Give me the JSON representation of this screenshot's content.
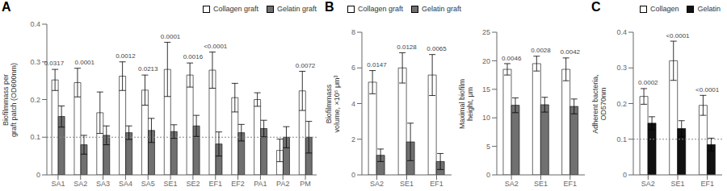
{
  "chart_data": [
    {
      "type": "bar",
      "title": "A",
      "categories": [
        "SA1",
        "SA2",
        "SA3",
        "SA4",
        "SA5",
        "SE1",
        "SE2",
        "EF1",
        "EF2",
        "PA1",
        "PA2",
        "PM"
      ],
      "series": [
        {
          "name": "Collagen graft",
          "color": "#ffffff",
          "values": [
            0.252,
            0.245,
            0.165,
            0.262,
            0.225,
            0.28,
            0.265,
            0.278,
            0.205,
            0.2,
            0.065,
            0.223
          ],
          "errors": [
            0.028,
            0.038,
            0.055,
            0.038,
            0.04,
            0.072,
            0.032,
            0.048,
            0.038,
            0.018,
            0.03,
            0.052
          ]
        },
        {
          "name": "Gelatin graft",
          "color": "#707070",
          "values": [
            0.155,
            0.08,
            0.105,
            0.112,
            0.118,
            0.115,
            0.13,
            0.082,
            0.112,
            0.123,
            0.1,
            0.1
          ],
          "errors": [
            0.028,
            0.025,
            0.025,
            0.018,
            0.032,
            0.018,
            0.028,
            0.032,
            0.022,
            0.022,
            0.028,
            0.042
          ]
        }
      ],
      "annotations": [
        {
          "category": "SA1",
          "text": "0.0317"
        },
        {
          "category": "SA2",
          "text": "0.0001"
        },
        {
          "category": "SA4",
          "text": "0.0012"
        },
        {
          "category": "SA5",
          "text": "0.0213"
        },
        {
          "category": "SE1",
          "text": "0.0001"
        },
        {
          "category": "SE2",
          "text": "0.0016"
        },
        {
          "category": "EF1",
          "text": "<0.0001"
        },
        {
          "category": "PM",
          "text": "0.0072"
        }
      ],
      "ylabel": "Biofilmmass per\ngraft patch (OD600nm)",
      "ylim": [
        0,
        0.4
      ],
      "yticks": [
        0,
        0.1,
        0.2,
        0.3,
        0.4
      ],
      "reference_line": 0.1,
      "legend": "upper right"
    },
    {
      "type": "bar",
      "title": "B",
      "categories": [
        "SA2",
        "SE1",
        "EF1"
      ],
      "series": [
        {
          "name": "Collagen graft",
          "color": "#ffffff",
          "values": [
            5.2,
            6.0,
            5.6
          ],
          "errors": [
            0.65,
            0.85,
            1.15
          ]
        },
        {
          "name": "Gelatin graft",
          "color": "#707070",
          "values": [
            1.1,
            1.85,
            0.75
          ],
          "errors": [
            0.35,
            1.05,
            0.45
          ]
        }
      ],
      "annotations": [
        {
          "category": "SA2",
          "text": "0.0147"
        },
        {
          "category": "SE1",
          "text": "0.0128"
        },
        {
          "category": "EF1",
          "text": "0.0065"
        }
      ],
      "ylabel": "Biofilmmass\nvolume, ×10⁵ μm³",
      "ylim": [
        0,
        8
      ],
      "yticks": [
        0,
        2,
        4,
        6,
        8
      ],
      "legend": "upper left"
    },
    {
      "type": "bar",
      "categories": [
        "SA2",
        "SE1",
        "EF1"
      ],
      "series": [
        {
          "color": "#ffffff",
          "values": [
            18.5,
            19.5,
            18.5
          ],
          "errors": [
            1.0,
            1.3,
            2.0
          ]
        },
        {
          "color": "#707070",
          "values": [
            12.2,
            12.3,
            12.0
          ],
          "errors": [
            1.3,
            1.3,
            1.3
          ]
        }
      ],
      "annotations": [
        {
          "category": "SA2",
          "text": "0.0046"
        },
        {
          "category": "SE1",
          "text": "0.0028"
        },
        {
          "category": "EF1",
          "text": "0.0042"
        }
      ],
      "ylabel": "Maximal biofilm\nheight, μm",
      "ylim": [
        0,
        25
      ],
      "yticks": [
        0,
        5,
        10,
        15,
        20,
        25
      ]
    },
    {
      "type": "bar",
      "title": "C",
      "categories": [
        "SA2",
        "SE1",
        "EF1"
      ],
      "series": [
        {
          "name": "Collagen",
          "color": "#ffffff",
          "values": [
            0.22,
            0.32,
            0.195
          ],
          "errors": [
            0.022,
            0.055,
            0.028
          ]
        },
        {
          "name": "Gelatin",
          "color": "#111111",
          "values": [
            0.145,
            0.13,
            0.085
          ],
          "errors": [
            0.018,
            0.022,
            0.018
          ]
        }
      ],
      "annotations": [
        {
          "category": "SA2",
          "text": "0.0002"
        },
        {
          "category": "SE1",
          "text": "<0.0001"
        },
        {
          "category": "EF1",
          "text": "<0.0001"
        }
      ],
      "ylabel": "Adherent bacteria,\nOD570nm",
      "ylim": [
        0,
        0.4
      ],
      "yticks": [
        0,
        0.1,
        0.2,
        0.3,
        0.4
      ],
      "reference_line": 0.1,
      "legend": "upper right"
    }
  ]
}
